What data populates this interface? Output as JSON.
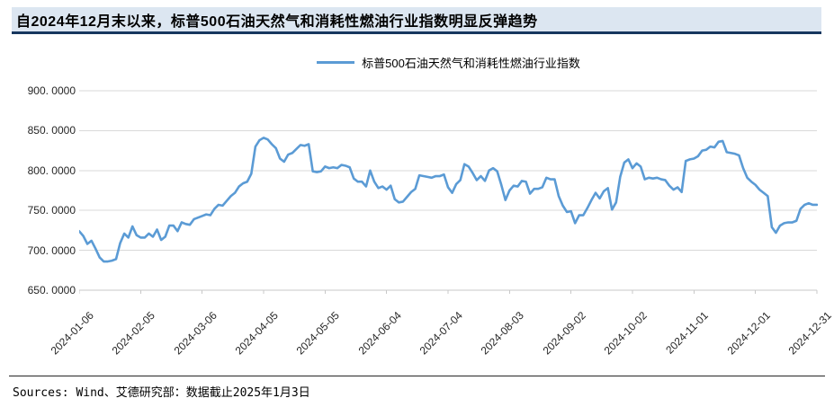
{
  "title": {
    "text": "自2024年12月末以来，标普500石油天然气和消耗性燃油行业指数明显反弹趋势"
  },
  "legend": {
    "label": "标普500石油天然气和消耗性燃油行业指数"
  },
  "footer": {
    "text": "Sources: Wind、艾德研究部：数据截止2025年1月3日"
  },
  "colors": {
    "line": "#5b9bd5",
    "grid": "#d9d9d9",
    "axis": "#c8c8c8",
    "title_bg": "#dce6f1",
    "title_border": "#17375e",
    "text": "#262626"
  },
  "chart_data": {
    "type": "line",
    "title": "标普500石油天然气和消耗性燃油行业指数",
    "series_name": "标普500石油天然气和消耗性燃油行业指数",
    "legend_position": "top",
    "grid": true,
    "ylim": [
      650,
      900
    ],
    "y_ticks": [
      "900. 0000",
      "850. 0000",
      "800. 0000",
      "750. 0000",
      "700. 0000",
      "650. 0000"
    ],
    "x_tick_labels": [
      "2024-01-06",
      "2024-02-05",
      "2024-03-06",
      "2024-04-05",
      "2024-05-05",
      "2024-06-04",
      "2024-07-04",
      "2024-08-03",
      "2024-09-02",
      "2024-10-02",
      "2024-11-01",
      "2024-12-01",
      "2024-12-31"
    ],
    "x_start": "2024-01-06",
    "x_end": "2024-12-31",
    "sample_interval_days": 2,
    "values": [
      724,
      718,
      708,
      712,
      702,
      691,
      686,
      686,
      687,
      689,
      709,
      721,
      716,
      730,
      719,
      716,
      716,
      721,
      717,
      726,
      713,
      717,
      731,
      731,
      724,
      735,
      733,
      732,
      739,
      741,
      743,
      745,
      744,
      752,
      757,
      756,
      762,
      768,
      772,
      780,
      784,
      786,
      796,
      830,
      838,
      841,
      839,
      833,
      828,
      815,
      811,
      820,
      822,
      827,
      832,
      831,
      833,
      799,
      798,
      799,
      805,
      803,
      804,
      803,
      807,
      806,
      804,
      790,
      786,
      786,
      780,
      800,
      786,
      778,
      780,
      776,
      781,
      764,
      760,
      761,
      767,
      773,
      777,
      794,
      793,
      792,
      791,
      793,
      793,
      795,
      779,
      772,
      783,
      788,
      808,
      805,
      797,
      788,
      793,
      787,
      800,
      803,
      799,
      782,
      763,
      775,
      781,
      780,
      787,
      786,
      771,
      777,
      777,
      779,
      791,
      789,
      789,
      768,
      756,
      748,
      749,
      734,
      744,
      744,
      753,
      763,
      772,
      765,
      774,
      778,
      751,
      760,
      792,
      810,
      814,
      803,
      809,
      805,
      789,
      791,
      790,
      791,
      789,
      788,
      781,
      776,
      779,
      773,
      812,
      814,
      815,
      818,
      825,
      826,
      830,
      829,
      836,
      837,
      823,
      822,
      821,
      819,
      803,
      791,
      786,
      782,
      776,
      772,
      768,
      729,
      722,
      731,
      734,
      735,
      735,
      737,
      752,
      757,
      759,
      757,
      757
    ]
  }
}
